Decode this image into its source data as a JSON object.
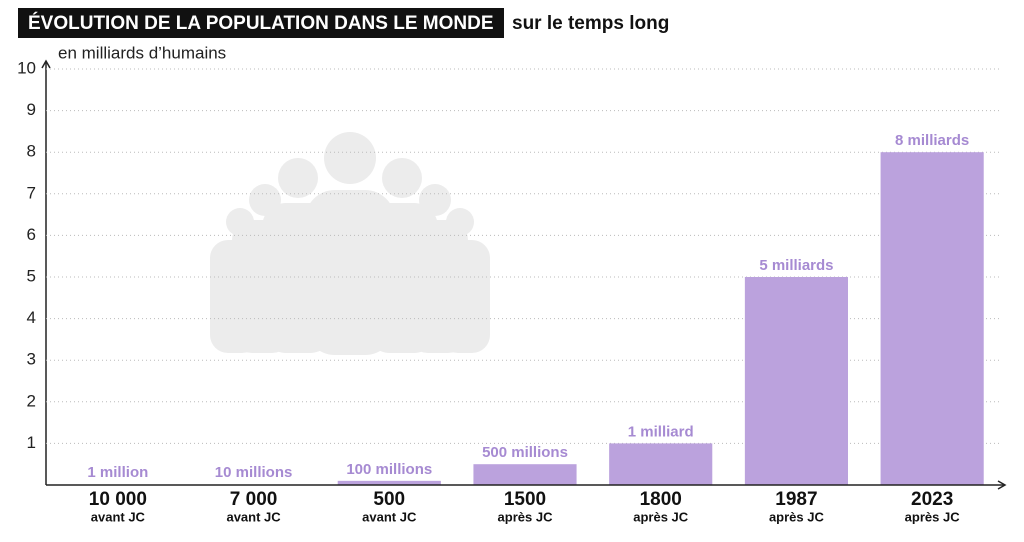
{
  "chart_data": {
    "type": "bar",
    "title": "ÉVOLUTION DE LA POPULATION DANS LE MONDE",
    "subtitle": "sur le temps long",
    "y_label": "en milliards d’humains",
    "categories": [
      "10 000",
      "7 000",
      "500",
      "1500",
      "1800",
      "1987",
      "2023"
    ],
    "category_eras": [
      "avant JC",
      "avant JC",
      "avant JC",
      "après JC",
      "après JC",
      "après JC",
      "après JC"
    ],
    "values": [
      0.001,
      0.01,
      0.1,
      0.5,
      1,
      5,
      8
    ],
    "value_labels": [
      "1 million",
      "10 millions",
      "100 millions",
      "500 millions",
      "1 milliard",
      "5 milliards",
      "8 milliards"
    ],
    "color": "#bba2dd",
    "label_color": "#a68ad2",
    "ylim": [
      0,
      10
    ],
    "yticks": [
      1,
      2,
      3,
      4,
      5,
      6,
      7,
      8,
      9,
      10
    ],
    "grid": true
  }
}
